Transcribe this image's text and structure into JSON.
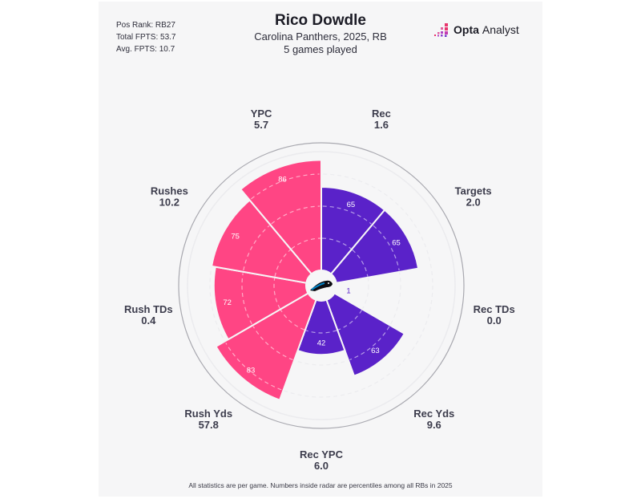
{
  "header": {
    "player_name": "Rico Dowdle",
    "team_season": "Carolina Panthers, 2025, RB",
    "games_played": "5 games played"
  },
  "stats": {
    "pos_rank": "Pos Rank: RB27",
    "total_fpts": "Total FPTS: 53.7",
    "avg_fpts": "Avg. FPTS: 10.7"
  },
  "logo": {
    "bold": "Opta",
    "light": "Analyst",
    "icon": "opta-dots-icon"
  },
  "center_icon": "carolina-panthers-logo-icon",
  "footer": "All statistics are per game. Numbers inside radar are percentiles among all RBs in 2025",
  "colors": {
    "rushing": "#ff4584",
    "receiving": "#5a22c9",
    "background": "#f6f6f7",
    "text": "#3c3c4c"
  },
  "chart_data": {
    "type": "polar-bar",
    "title": "Rico Dowdle",
    "subtitle": "Carolina Panthers, 2025, RB — 5 games played",
    "rlim": [
      0,
      100
    ],
    "grid": [
      25,
      50,
      75,
      100
    ],
    "categories": [
      "Rec",
      "Targets",
      "Rec TDs",
      "Rec Yds",
      "Rec YPC",
      "Rush Yds",
      "Rush TDs",
      "Rushes",
      "YPC"
    ],
    "per_game_values": [
      "1.6",
      "2.0",
      "0.0",
      "9.6",
      "6.0",
      "57.8",
      "0.4",
      "10.2",
      "5.7"
    ],
    "percentiles": [
      65,
      65,
      1,
      63,
      42,
      83,
      72,
      75,
      86
    ],
    "groups": [
      "receiving",
      "receiving",
      "receiving",
      "receiving",
      "receiving",
      "rushing",
      "rushing",
      "rushing",
      "rushing"
    ]
  }
}
